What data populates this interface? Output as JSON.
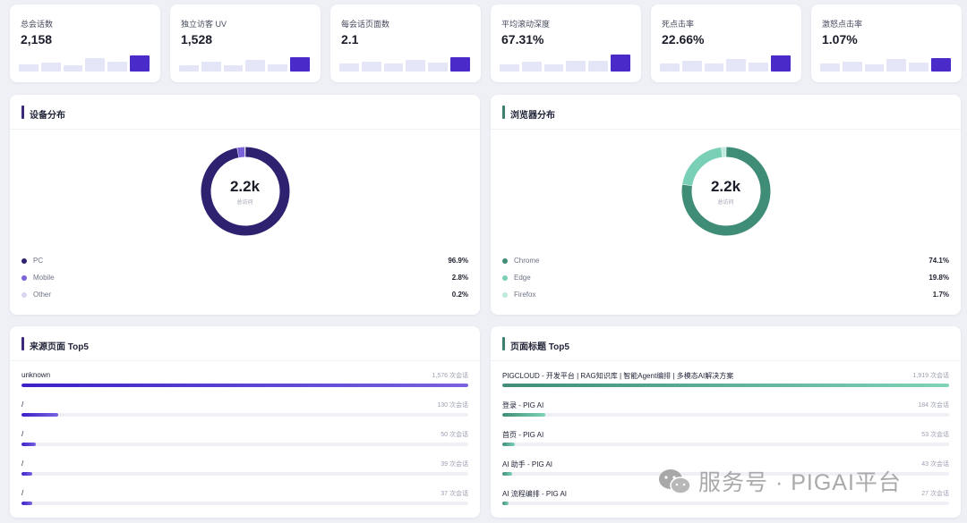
{
  "stats": [
    {
      "label": "总会话数",
      "value": "2,158"
    },
    {
      "label": "独立访客 UV",
      "value": "1,528"
    },
    {
      "label": "每会话页面数",
      "value": "2.1"
    },
    {
      "label": "平均滚动深度",
      "value": "67.31%"
    },
    {
      "label": "死点击率",
      "value": "22.66%"
    },
    {
      "label": "激怒点击率",
      "value": "1.07%"
    }
  ],
  "device": {
    "title": "设备分布",
    "center_value": "2.2k",
    "center_label": "总访问",
    "accent": "#3b2a7a",
    "items": [
      {
        "name": "PC",
        "pct": "96.9%",
        "value": 96.9,
        "color": "#2e2170"
      },
      {
        "name": "Mobile",
        "pct": "2.8%",
        "value": 2.8,
        "color": "#7a62d8"
      },
      {
        "name": "Other",
        "pct": "0.2%",
        "value": 0.2,
        "color": "#d9d6f3"
      }
    ]
  },
  "browser": {
    "title": "浏览器分布",
    "center_value": "2.2k",
    "center_label": "总访问",
    "accent": "#3f7f70",
    "items": [
      {
        "name": "Chrome",
        "pct": "74.1%",
        "value": 74.1,
        "color": "#3f8d77"
      },
      {
        "name": "Edge",
        "pct": "19.8%",
        "value": 19.8,
        "color": "#79d0b6"
      },
      {
        "name": "Firefox",
        "pct": "1.7%",
        "value": 1.7,
        "color": "#bfe9dc"
      }
    ]
  },
  "sources": {
    "title": "来源页面 Top5",
    "accent": "#3b2a7a",
    "items": [
      {
        "name": "unknown",
        "count": "1,576 次会话",
        "value": 1576
      },
      {
        "name": "/",
        "count": "130 次会话",
        "value": 130
      },
      {
        "name": "/",
        "count": "50 次会话",
        "value": 50
      },
      {
        "name": "/",
        "count": "39 次会话",
        "value": 39
      },
      {
        "name": "/",
        "count": "37 次会话",
        "value": 37
      }
    ]
  },
  "titles": {
    "title": "页面标题 Top5",
    "accent": "#3f7f70",
    "items": [
      {
        "name": "PIGCLOUD - 开发平台 | RAG知识库 | 智能Agent编排 | 多模态AI解决方案",
        "count": "1,919 次会话",
        "value": 1919
      },
      {
        "name": "登录 - PIG AI",
        "count": "184 次会话",
        "value": 184
      },
      {
        "name": "首页 - PIG AI",
        "count": "53 次会话",
        "value": 53
      },
      {
        "name": "AI 助手 - PIG AI",
        "count": "43 次会话",
        "value": 43
      },
      {
        "name": "AI 流程编排 - PIG AI",
        "count": "27 次会话",
        "value": 27
      }
    ]
  },
  "watermark": "服务号 · PIGAI平台"
}
